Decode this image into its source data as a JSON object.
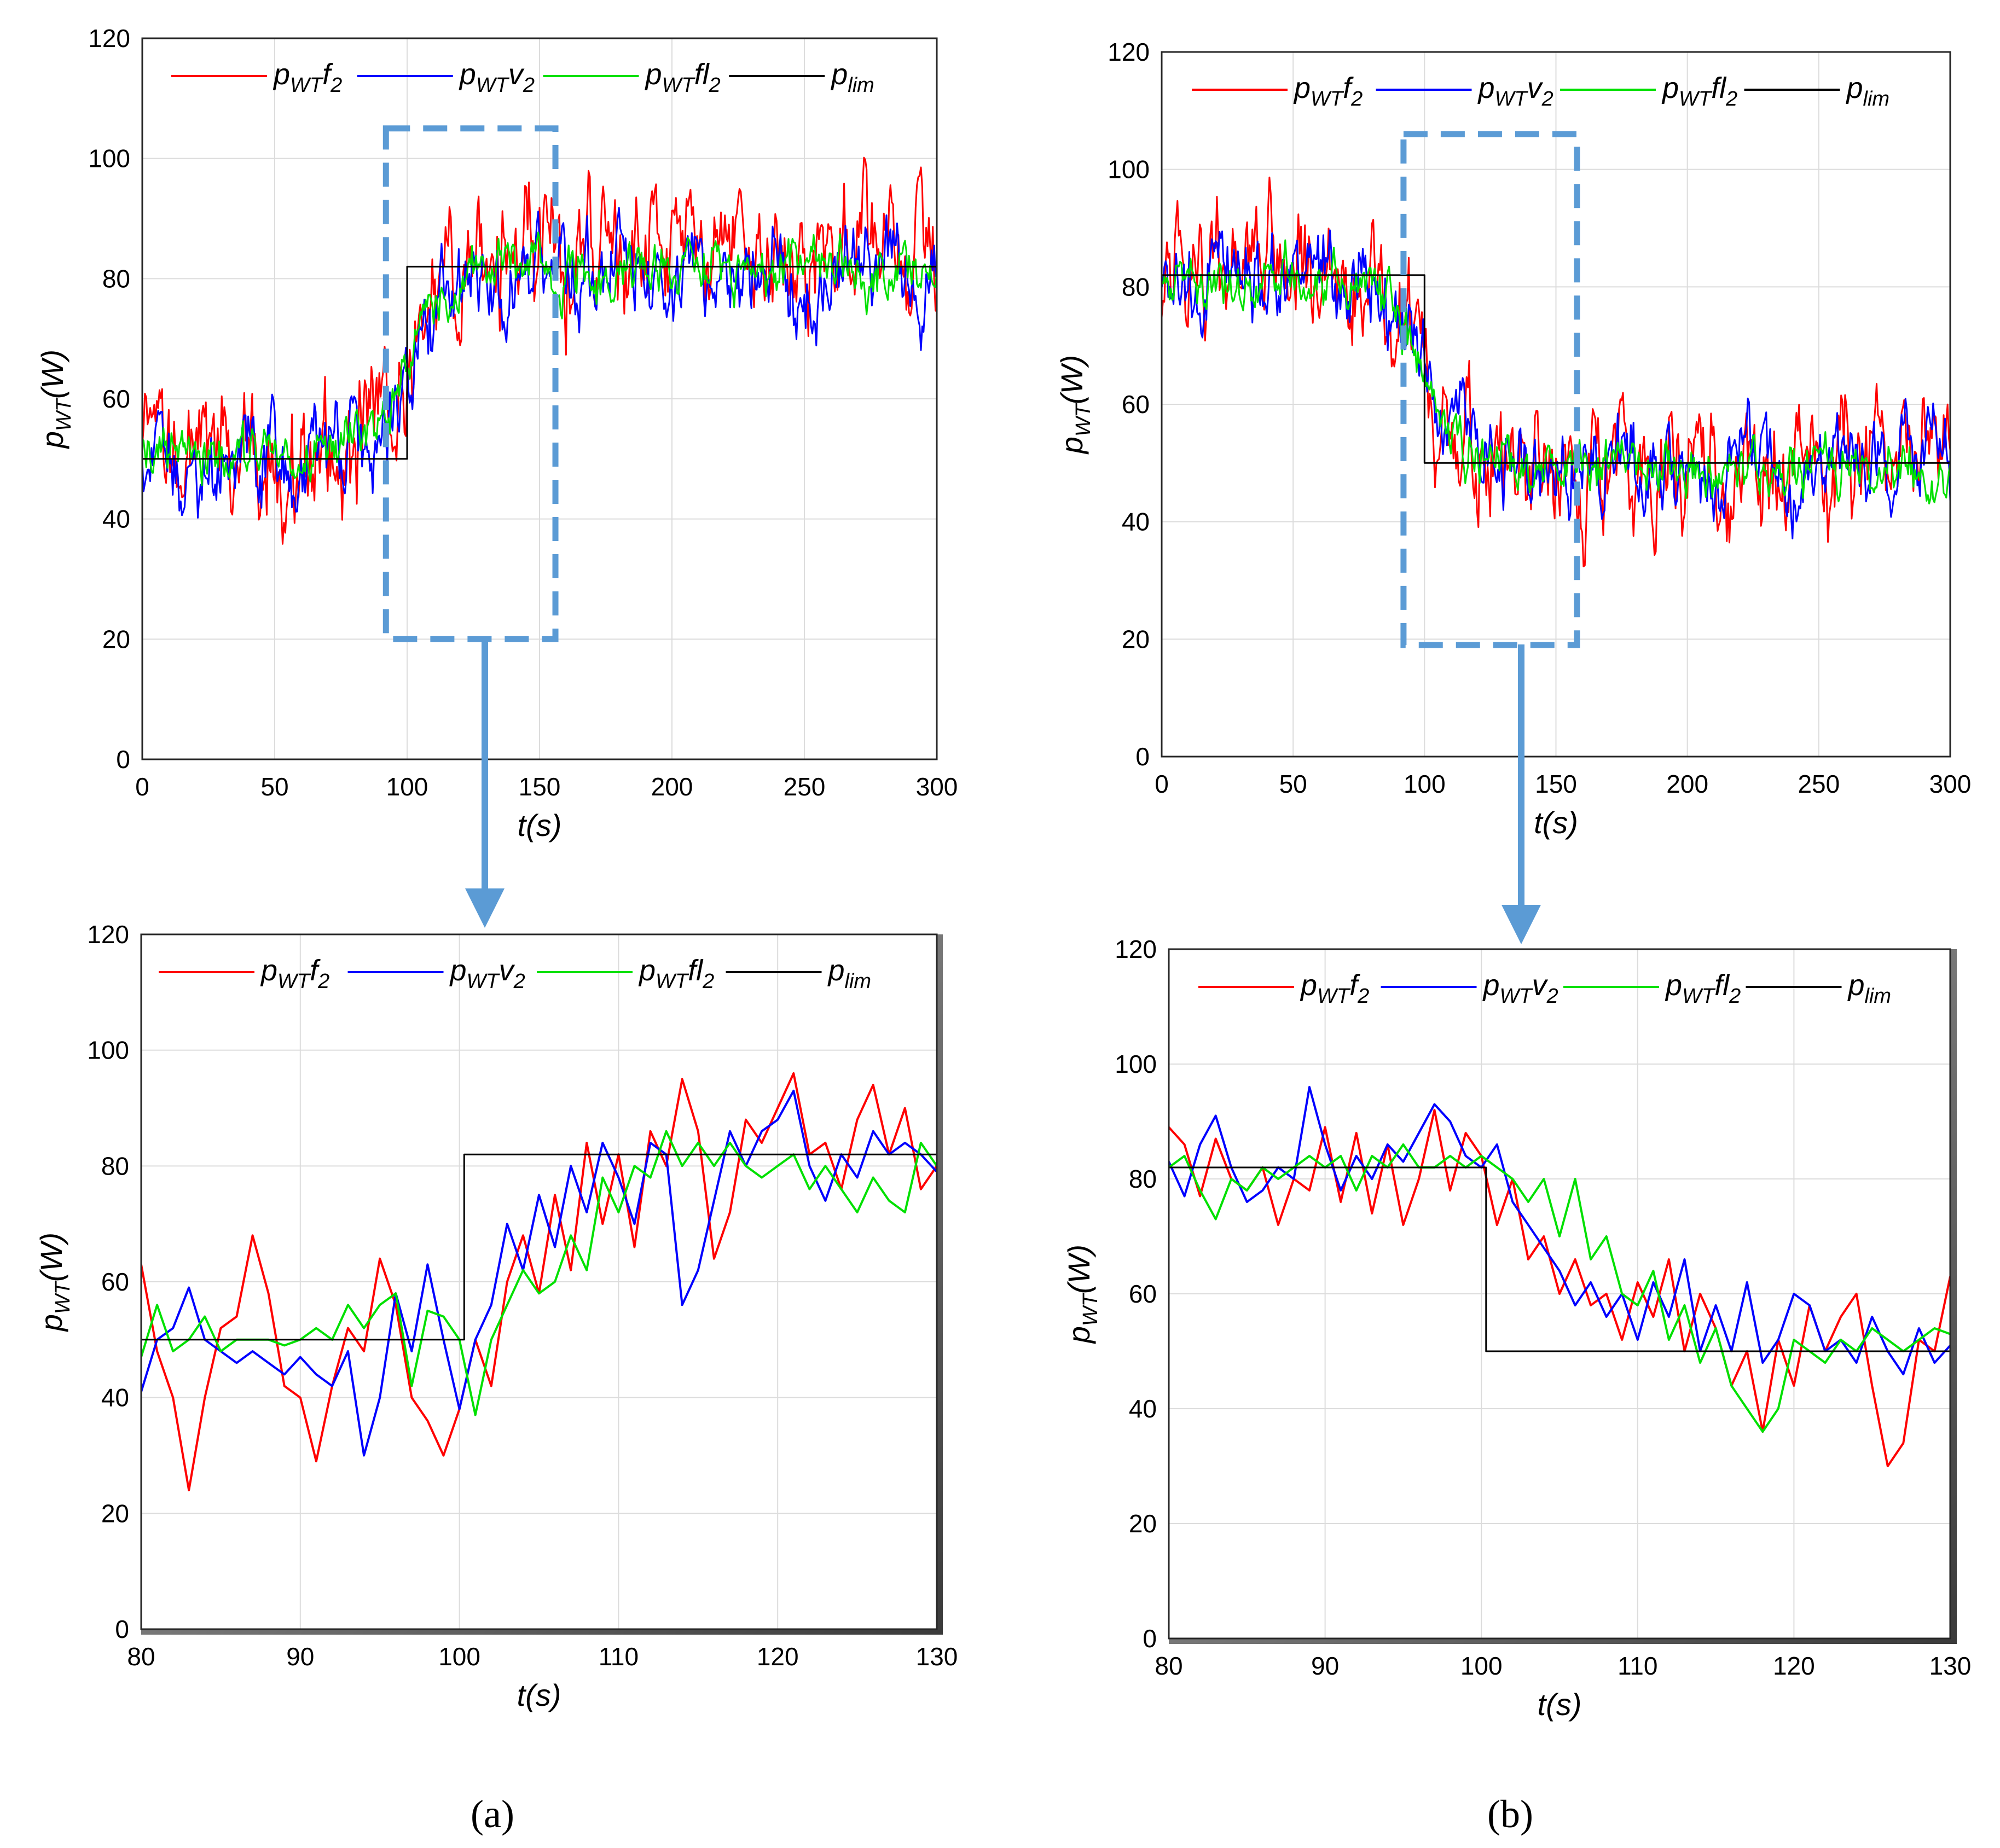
{
  "figure": {
    "panel_labels": [
      "(a)",
      "(b)"
    ],
    "colors": {
      "pwt_f2": "#ff0000",
      "pwt_v2": "#0000ff",
      "pwt_fl2": "#00e000",
      "plim": "#000000",
      "zoom": "#5b9bd5"
    }
  },
  "legend": {
    "f2": {
      "main": "p",
      "sub": "WT",
      "post": "f",
      "post_sub": "2"
    },
    "v2": {
      "main": "p",
      "sub": "WT",
      "post": "v",
      "post_sub": "2"
    },
    "fl2": {
      "main": "p",
      "sub": "WT",
      "post": "fl",
      "post_sub": "2"
    },
    "lim": {
      "main": "p",
      "sub": "lim"
    }
  },
  "axis_text": {
    "xlabel": "t(s)",
    "ylabel_main": "p",
    "ylabel_sub": "WT",
    "ylabel_post": "(W)"
  },
  "chart_data": [
    {
      "id": "a-top",
      "type": "line",
      "xlim": [
        0,
        300
      ],
      "ylim": [
        0,
        120
      ],
      "xticks": [
        0,
        50,
        100,
        150,
        200,
        250,
        300
      ],
      "yticks": [
        0,
        20,
        40,
        60,
        80,
        100,
        120
      ],
      "xlabel": "t(s)",
      "ylabel": "p_WT(W)",
      "legend_position": "top",
      "grid": true,
      "zoom_box": {
        "x": [
          92,
          156
        ],
        "y": [
          20,
          105
        ]
      },
      "series": [
        {
          "name": "p_WT f_2",
          "color_key": "pwt_f2",
          "mean_before": 50,
          "mean_after": 84,
          "noise": 14,
          "step_t": 100
        },
        {
          "name": "p_WT v_2",
          "color_key": "pwt_v2",
          "mean_before": 49,
          "mean_after": 81,
          "noise": 10,
          "step_t": 100
        },
        {
          "name": "p_WT fl_2",
          "color_key": "pwt_fl2",
          "mean_before": 50,
          "mean_after": 82,
          "noise": 6,
          "step_t": 100
        },
        {
          "name": "p_lim",
          "color_key": "plim",
          "x": [
            0,
            100,
            100,
            300
          ],
          "y": [
            50,
            50,
            82,
            82
          ]
        }
      ]
    },
    {
      "id": "b-top",
      "type": "line",
      "xlim": [
        0,
        300
      ],
      "ylim": [
        0,
        120
      ],
      "xticks": [
        0,
        50,
        100,
        150,
        200,
        250,
        300
      ],
      "yticks": [
        0,
        20,
        40,
        60,
        80,
        100,
        120
      ],
      "xlabel": "t(s)",
      "ylabel": "p_WT(W)",
      "legend_position": "top",
      "grid": true,
      "zoom_box": {
        "x": [
          92,
          158
        ],
        "y": [
          19,
          106
        ]
      },
      "series": [
        {
          "name": "p_WT f_2",
          "color_key": "pwt_f2",
          "mean_before": 83,
          "mean_after": 50,
          "noise": 14,
          "step_t": 100
        },
        {
          "name": "p_WT v_2",
          "color_key": "pwt_v2",
          "mean_before": 81,
          "mean_after": 50,
          "noise": 10,
          "step_t": 100
        },
        {
          "name": "p_WT fl_2",
          "color_key": "pwt_fl2",
          "mean_before": 82,
          "mean_after": 49,
          "noise": 6,
          "step_t": 100
        },
        {
          "name": "p_lim",
          "color_key": "plim",
          "x": [
            0,
            100,
            100,
            300
          ],
          "y": [
            82,
            82,
            50,
            50
          ]
        }
      ]
    },
    {
      "id": "a-bottom",
      "type": "line",
      "xlim": [
        80,
        130
      ],
      "ylim": [
        0,
        120
      ],
      "xticks": [
        80,
        90,
        100,
        110,
        120,
        130
      ],
      "yticks": [
        0,
        20,
        40,
        60,
        80,
        100,
        120
      ],
      "xlabel": "t(s)",
      "ylabel": "p_WT(W)",
      "legend_position": "top",
      "grid": true,
      "series": [
        {
          "name": "p_WT f_2",
          "color_key": "pwt_f2",
          "x": [
            80,
            81,
            82,
            83,
            84,
            85,
            86,
            87,
            88,
            89,
            90,
            91,
            92,
            93,
            94,
            95,
            96,
            97,
            98,
            99,
            100,
            101,
            102,
            103,
            104,
            105,
            106,
            107,
            108,
            109,
            110,
            111,
            112,
            113,
            114,
            115,
            116,
            117,
            118,
            119,
            120,
            121,
            122,
            123,
            124,
            125,
            126,
            127,
            128,
            129,
            130
          ],
          "y": [
            63,
            48,
            40,
            24,
            40,
            52,
            54,
            68,
            58,
            42,
            40,
            29,
            42,
            52,
            48,
            64,
            56,
            40,
            36,
            30,
            38,
            50,
            42,
            60,
            68,
            58,
            75,
            62,
            84,
            70,
            82,
            66,
            86,
            80,
            95,
            86,
            64,
            72,
            88,
            84,
            90,
            96,
            82,
            84,
            76,
            88,
            94,
            82,
            90,
            76,
            80
          ]
        },
        {
          "name": "p_WT v_2",
          "color_key": "pwt_v2",
          "x": [
            80,
            81,
            82,
            83,
            84,
            85,
            86,
            87,
            88,
            89,
            90,
            91,
            92,
            93,
            94,
            95,
            96,
            97,
            98,
            99,
            100,
            101,
            102,
            103,
            104,
            105,
            106,
            107,
            108,
            109,
            110,
            111,
            112,
            113,
            114,
            115,
            116,
            117,
            118,
            119,
            120,
            121,
            122,
            123,
            124,
            125,
            126,
            127,
            128,
            129,
            130
          ],
          "y": [
            41,
            50,
            52,
            59,
            50,
            48,
            46,
            48,
            46,
            44,
            47,
            44,
            42,
            48,
            30,
            40,
            58,
            48,
            63,
            50,
            38,
            50,
            56,
            70,
            62,
            75,
            66,
            80,
            72,
            84,
            78,
            70,
            84,
            82,
            56,
            62,
            74,
            86,
            80,
            86,
            88,
            93,
            80,
            74,
            82,
            78,
            86,
            82,
            84,
            82,
            79
          ]
        },
        {
          "name": "p_WT fl_2",
          "color_key": "pwt_fl2",
          "x": [
            80,
            81,
            82,
            83,
            84,
            85,
            86,
            87,
            88,
            89,
            90,
            91,
            92,
            93,
            94,
            95,
            96,
            97,
            98,
            99,
            100,
            101,
            102,
            103,
            104,
            105,
            106,
            107,
            108,
            109,
            110,
            111,
            112,
            113,
            114,
            115,
            116,
            117,
            118,
            119,
            120,
            121,
            122,
            123,
            124,
            125,
            126,
            127,
            128,
            129,
            130
          ],
          "y": [
            47,
            56,
            48,
            50,
            54,
            48,
            50,
            50,
            50,
            49,
            50,
            52,
            50,
            56,
            52,
            56,
            58,
            42,
            55,
            54,
            50,
            37,
            50,
            56,
            62,
            58,
            60,
            68,
            62,
            78,
            72,
            80,
            78,
            86,
            80,
            84,
            80,
            84,
            80,
            78,
            80,
            82,
            76,
            80,
            76,
            72,
            78,
            74,
            72,
            84,
            80
          ]
        },
        {
          "name": "p_lim",
          "color_key": "plim",
          "x": [
            80,
            100.3,
            100.3,
            130
          ],
          "y": [
            50,
            50,
            82,
            82
          ]
        }
      ]
    },
    {
      "id": "b-bottom",
      "type": "line",
      "xlim": [
        80,
        130
      ],
      "ylim": [
        0,
        120
      ],
      "xticks": [
        80,
        90,
        100,
        110,
        120,
        130
      ],
      "yticks": [
        0,
        20,
        40,
        60,
        80,
        100,
        120
      ],
      "xlabel": "t(s)",
      "ylabel": "p_WT(W)",
      "legend_position": "top",
      "grid": true,
      "series": [
        {
          "name": "p_WT f_2",
          "color_key": "pwt_f2",
          "x": [
            80,
            81,
            82,
            83,
            84,
            85,
            86,
            87,
            88,
            89,
            90,
            91,
            92,
            93,
            94,
            95,
            96,
            97,
            98,
            99,
            100,
            101,
            102,
            103,
            104,
            105,
            106,
            107,
            108,
            109,
            110,
            111,
            112,
            113,
            114,
            115,
            116,
            117,
            118,
            119,
            120,
            121,
            122,
            123,
            124,
            125,
            126,
            127,
            128,
            129,
            130
          ],
          "y": [
            89,
            86,
            77,
            87,
            80,
            78,
            82,
            72,
            80,
            78,
            89,
            76,
            88,
            74,
            86,
            72,
            80,
            92,
            78,
            88,
            84,
            72,
            80,
            66,
            70,
            60,
            66,
            58,
            60,
            52,
            62,
            56,
            66,
            50,
            60,
            54,
            44,
            50,
            36,
            52,
            44,
            58,
            50,
            56,
            60,
            44,
            30,
            34,
            52,
            50,
            63
          ]
        },
        {
          "name": "p_WT v_2",
          "color_key": "pwt_v2",
          "x": [
            80,
            81,
            82,
            83,
            84,
            85,
            86,
            87,
            88,
            89,
            90,
            91,
            92,
            93,
            94,
            95,
            96,
            97,
            98,
            99,
            100,
            101,
            102,
            103,
            104,
            105,
            106,
            107,
            108,
            109,
            110,
            111,
            112,
            113,
            114,
            115,
            116,
            117,
            118,
            119,
            120,
            121,
            122,
            123,
            124,
            125,
            126,
            127,
            128,
            129,
            130
          ],
          "y": [
            83,
            77,
            86,
            91,
            82,
            76,
            78,
            82,
            80,
            96,
            86,
            78,
            84,
            80,
            86,
            83,
            88,
            93,
            90,
            84,
            82,
            86,
            76,
            72,
            68,
            64,
            58,
            62,
            56,
            60,
            52,
            62,
            56,
            66,
            50,
            58,
            50,
            62,
            48,
            52,
            60,
            58,
            50,
            52,
            48,
            56,
            50,
            46,
            54,
            48,
            51
          ]
        },
        {
          "name": "p_WT fl_2",
          "color_key": "pwt_fl2",
          "x": [
            80,
            81,
            82,
            83,
            84,
            85,
            86,
            87,
            88,
            89,
            90,
            91,
            92,
            93,
            94,
            95,
            96,
            97,
            98,
            99,
            100,
            101,
            102,
            103,
            104,
            105,
            106,
            107,
            108,
            109,
            110,
            111,
            112,
            113,
            114,
            115,
            116,
            117,
            118,
            119,
            120,
            121,
            122,
            123,
            124,
            125,
            126,
            127,
            128,
            129,
            130
          ],
          "y": [
            82,
            84,
            78,
            73,
            80,
            78,
            82,
            80,
            82,
            84,
            82,
            84,
            78,
            84,
            82,
            86,
            82,
            82,
            84,
            82,
            84,
            82,
            80,
            76,
            80,
            70,
            80,
            66,
            70,
            60,
            58,
            64,
            52,
            58,
            48,
            54,
            44,
            40,
            36,
            40,
            52,
            50,
            48,
            52,
            50,
            54,
            52,
            50,
            52,
            54,
            53
          ]
        },
        {
          "name": "p_lim",
          "color_key": "plim",
          "x": [
            80,
            100.3,
            100.3,
            130
          ],
          "y": [
            82,
            82,
            50,
            50
          ]
        }
      ]
    }
  ]
}
